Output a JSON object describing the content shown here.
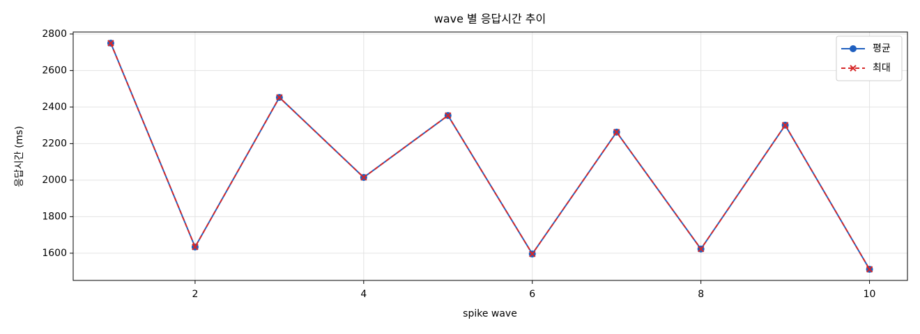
{
  "chart_data": {
    "type": "line",
    "title": "wave 별 응답시간 추이",
    "x_label": "spike wave",
    "y_label": "응답시간 (ms)",
    "x": [
      1,
      2,
      3,
      4,
      5,
      6,
      7,
      8,
      9,
      10
    ],
    "series": [
      {
        "name": "평균",
        "color": "#1f5fbf",
        "marker": "o",
        "dash": false,
        "values": [
          2750,
          1634,
          2453,
          2015,
          2354,
          1596,
          2263,
          1623,
          2301,
          1512
        ]
      },
      {
        "name": "최대",
        "color": "#d62728",
        "marker": "x",
        "dash": true,
        "values": [
          2750,
          1634,
          2453,
          2015,
          2354,
          1596,
          2263,
          1623,
          2301,
          1512
        ]
      }
    ],
    "xlim": [
      0.554,
      10.45
    ],
    "ylim": [
      1451,
      2811
    ],
    "xticks": [
      2,
      4,
      6,
      8,
      10
    ],
    "yticks": [
      1600,
      1800,
      2000,
      2200,
      2400,
      2600,
      2800
    ],
    "grid": true,
    "legend": "upper right"
  }
}
